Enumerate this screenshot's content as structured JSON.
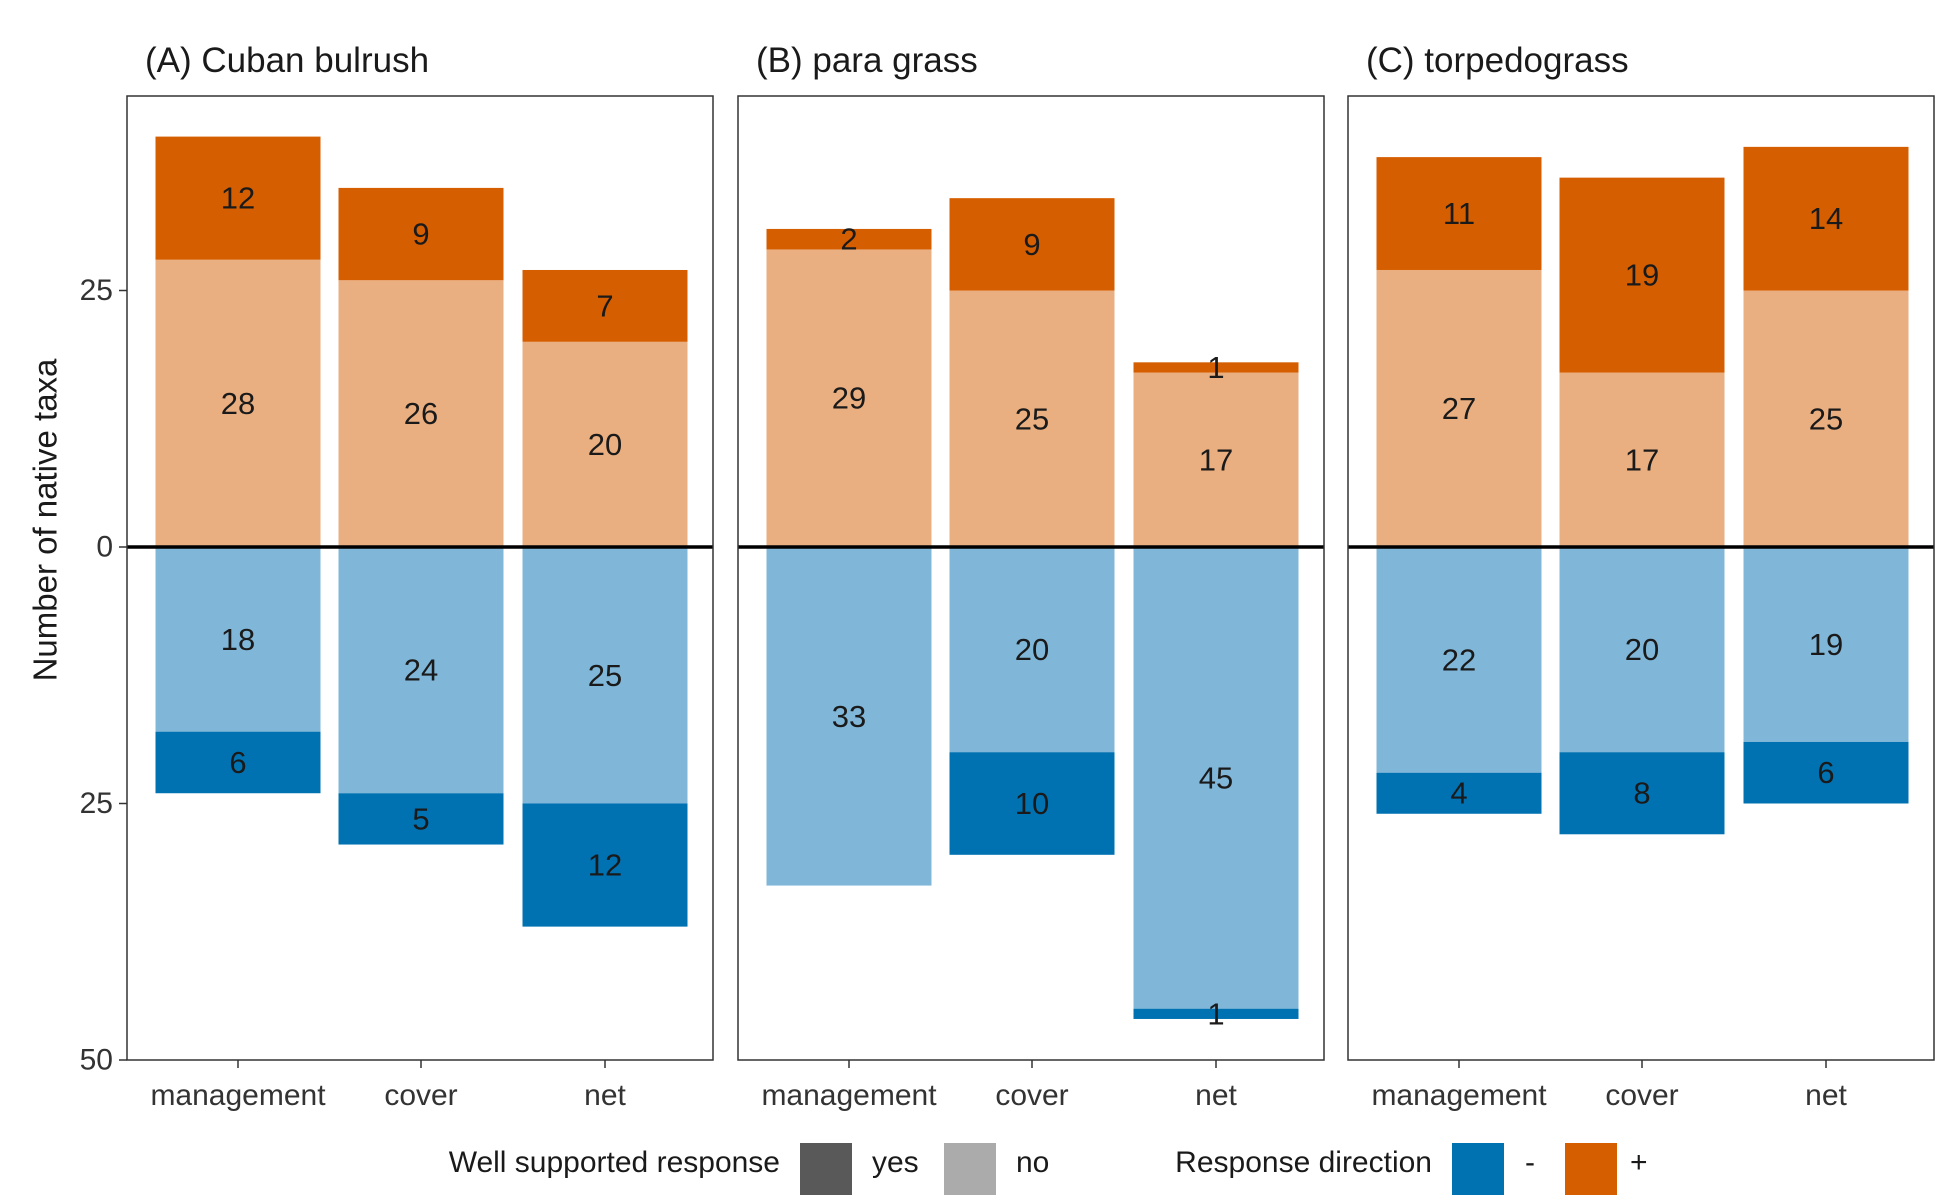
{
  "chart_data": {
    "type": "bar",
    "ylabel": "Number of native taxa",
    "y_ticks": [
      {
        "value": 25,
        "label": "25"
      },
      {
        "value": 0,
        "label": "0"
      },
      {
        "value": -25,
        "label": "25"
      },
      {
        "value": -50,
        "label": "50"
      }
    ],
    "ylim": [
      -50,
      40
    ],
    "categories": [
      "management",
      "cover",
      "net"
    ],
    "colors": {
      "neg_yes": "#0072B2",
      "neg_no": "#80B7D9",
      "pos_yes": "#D55E00",
      "pos_no": "#EAAF80"
    },
    "panels": [
      {
        "title": "(A) Cuban bulrush",
        "bars": [
          {
            "category": "management",
            "pos_no": 28,
            "pos_yes": 12,
            "neg_no": 18,
            "neg_yes": 6
          },
          {
            "category": "cover",
            "pos_no": 26,
            "pos_yes": 9,
            "neg_no": 24,
            "neg_yes": 5
          },
          {
            "category": "net",
            "pos_no": 20,
            "pos_yes": 7,
            "neg_no": 25,
            "neg_yes": 12
          }
        ]
      },
      {
        "title": "(B) para grass",
        "bars": [
          {
            "category": "management",
            "pos_no": 29,
            "pos_yes": 2,
            "neg_no": 33,
            "neg_yes": 0
          },
          {
            "category": "cover",
            "pos_no": 25,
            "pos_yes": 9,
            "neg_no": 20,
            "neg_yes": 10
          },
          {
            "category": "net",
            "pos_no": 17,
            "pos_yes": 1,
            "neg_no": 45,
            "neg_yes": 1
          }
        ]
      },
      {
        "title": "(C) torpedograss",
        "bars": [
          {
            "category": "management",
            "pos_no": 27,
            "pos_yes": 11,
            "neg_no": 22,
            "neg_yes": 4
          },
          {
            "category": "cover",
            "pos_no": 17,
            "pos_yes": 19,
            "neg_no": 20,
            "neg_yes": 8
          },
          {
            "category": "net",
            "pos_no": 25,
            "pos_yes": 14,
            "neg_no": 19,
            "neg_yes": 6
          }
        ]
      }
    ],
    "legend": {
      "placement": "bottom",
      "support_title": "Well supported response",
      "support_items": [
        {
          "label": "yes",
          "color": "#595959"
        },
        {
          "label": "no",
          "color": "#ABABAB"
        }
      ],
      "direction_title": "Response direction",
      "direction_items": [
        {
          "label": "-",
          "color": "#0072B2"
        },
        {
          "label": "+",
          "color": "#D55E00"
        }
      ]
    }
  }
}
